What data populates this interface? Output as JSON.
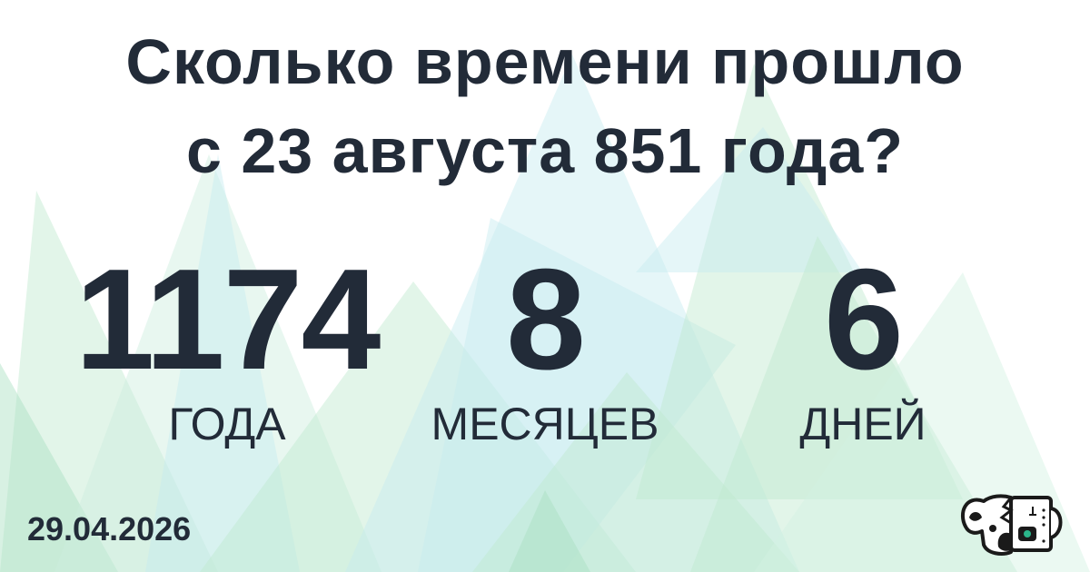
{
  "title": {
    "line1": "Сколько времени прошло",
    "line2": "с 23 августа 851 года?"
  },
  "result": [
    {
      "value": "1174",
      "unit": "ГОДА"
    },
    {
      "value": "8",
      "unit": "МЕСЯЦЕВ"
    },
    {
      "value": "6",
      "unit": "ДНЕЙ"
    }
  ],
  "date": "29.04.2026",
  "logo": {
    "icon": "koala-robot-logo"
  },
  "colors": {
    "text": "#222b38",
    "triangle_green": "#bfe8cf",
    "triangle_cyan": "#c6ecef",
    "logo_accent": "#2bb58a"
  }
}
